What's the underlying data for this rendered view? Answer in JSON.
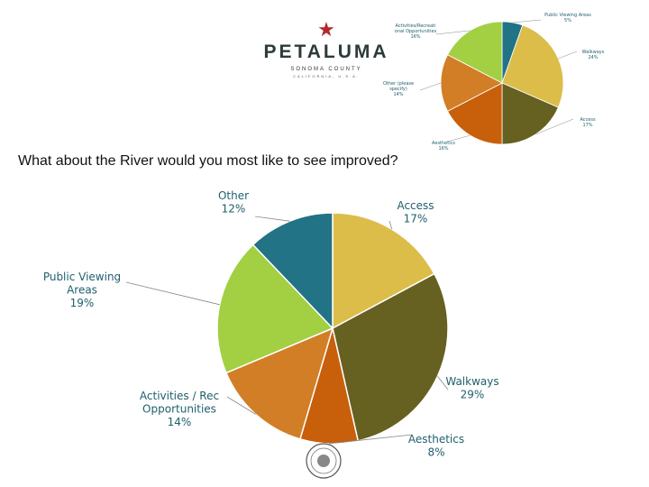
{
  "header": {
    "logo_star": "★",
    "logo_name": "PETALUMA",
    "logo_sub": "SONOMA COUNTY",
    "logo_sub2": "CALIFORNIA, U.S.A."
  },
  "question": "What about the River would you most like to see improved?",
  "chart_data": [
    {
      "type": "pie",
      "title": "",
      "slices": [
        {
          "label": "Access",
          "value": 17,
          "pct_label": "17%",
          "color": "#dcbd4a"
        },
        {
          "label": "Walkways",
          "value": 29,
          "pct_label": "29%",
          "color": "#666021"
        },
        {
          "label": "Aesthetics",
          "value": 8,
          "pct_label": "8%",
          "color": "#c85f0a"
        },
        {
          "label": "Activities / Rec Opportunities",
          "value": 14,
          "pct_label": "14%",
          "color": "#d27e26"
        },
        {
          "label": "Public Viewing Areas",
          "value": 19,
          "pct_label": "19%",
          "color": "#a3cf43"
        },
        {
          "label": "Other",
          "value": 12,
          "pct_label": "12%",
          "color": "#217385"
        }
      ],
      "label_lines": [
        [
          "Access",
          "17%"
        ],
        [
          "Walkways",
          "29%"
        ],
        [
          "Aesthetics",
          "8%"
        ],
        [
          "Activities / Rec",
          "Opportunities",
          "14%"
        ],
        [
          "Public Viewing",
          "Areas",
          "19%"
        ],
        [
          "Other",
          "12%"
        ]
      ],
      "legend": "none"
    },
    {
      "type": "pie",
      "title": "",
      "slices": [
        {
          "label": "Public Viewing Areas",
          "value": 5,
          "pct_label": "5%",
          "color": "#217385"
        },
        {
          "label": "Walkways",
          "value": 24,
          "pct_label": "24%",
          "color": "#dcbd4a"
        },
        {
          "label": "Access",
          "value": 17,
          "pct_label": "17%",
          "color": "#666021"
        },
        {
          "label": "Aesthetics",
          "value": 16,
          "pct_label": "16%",
          "color": "#c85f0a"
        },
        {
          "label": "Other (please specify)",
          "value": 14,
          "pct_label": "14%",
          "color": "#d27e26"
        },
        {
          "label": "Activities/Recreational Opportunities",
          "value": 16,
          "pct_label": "16%",
          "color": "#a3cf43"
        }
      ],
      "label_lines": [
        [
          "Public Viewing Areas",
          "5%"
        ],
        [
          "Walkways",
          "24%"
        ],
        [
          "Access",
          "17%"
        ],
        [
          "Aesthetics",
          "16%"
        ],
        [
          "Other (please",
          "specify)",
          "14%"
        ],
        [
          "Activities/Recreati",
          "onal Opportunities",
          "16%"
        ]
      ],
      "legend": "none"
    }
  ]
}
